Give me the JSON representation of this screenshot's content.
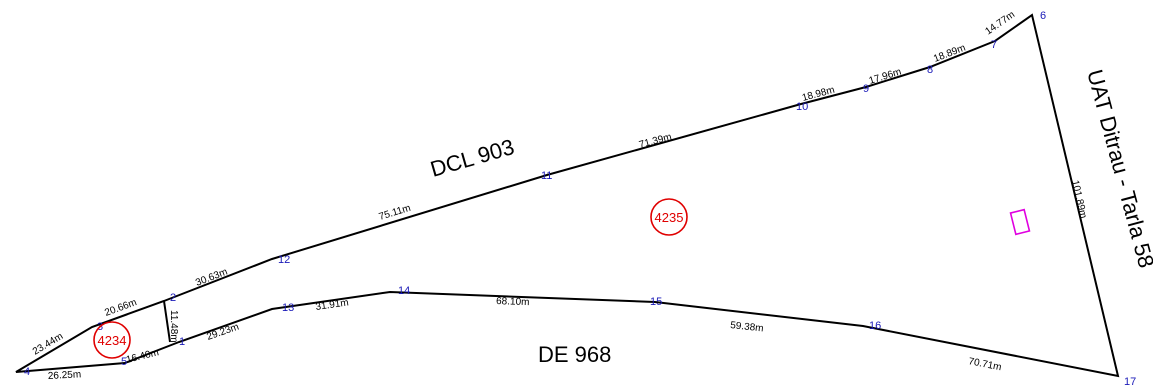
{
  "vertices": [
    {
      "label": "1"
    },
    {
      "label": "2"
    },
    {
      "label": "3"
    },
    {
      "label": "4"
    },
    {
      "label": "5"
    },
    {
      "label": "6"
    },
    {
      "label": "7"
    },
    {
      "label": "8"
    },
    {
      "label": "9"
    },
    {
      "label": "10"
    },
    {
      "label": "11"
    },
    {
      "label": "12"
    },
    {
      "label": "13"
    },
    {
      "label": "14"
    },
    {
      "label": "15"
    },
    {
      "label": "16"
    },
    {
      "label": "17"
    }
  ],
  "segments": [
    {
      "length": "23.44m"
    },
    {
      "length": "20.66m"
    },
    {
      "length": "30.63m"
    },
    {
      "length": "75.11m"
    },
    {
      "length": "71.39m"
    },
    {
      "length": "18.98m"
    },
    {
      "length": "17.96m"
    },
    {
      "length": "18.89m"
    },
    {
      "length": "14.77m"
    },
    {
      "length": "101.89m"
    },
    {
      "length": "70.71m"
    },
    {
      "length": "59.38m"
    },
    {
      "length": "68.10m"
    },
    {
      "length": "31.91m"
    },
    {
      "length": "29.23m"
    },
    {
      "length": "16.40m"
    },
    {
      "length": "26.25m"
    },
    {
      "length": "11.48m"
    }
  ],
  "parcels": [
    {
      "id": "4234",
      "color": "#e00000"
    },
    {
      "id": "4235",
      "color": "#e00000"
    }
  ],
  "roads": {
    "north": "DCL 903",
    "south": "DE 968",
    "east": "UAT Ditrau - Tarla 58"
  },
  "building": {
    "label": "",
    "color": "#e000e0"
  },
  "colors": {
    "boundary": "#000000",
    "vertex_label": "#1a1ab8"
  }
}
